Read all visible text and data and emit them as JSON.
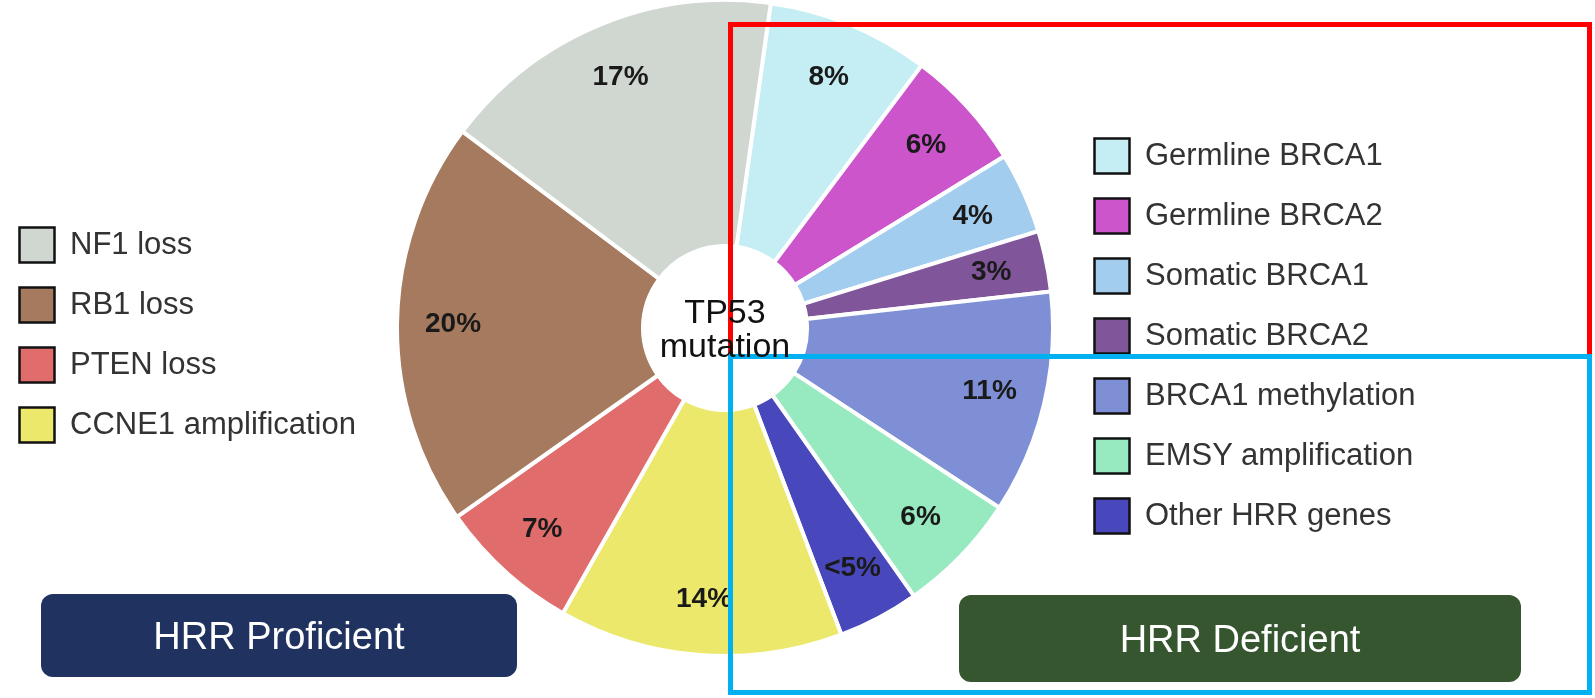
{
  "chart_data": {
    "type": "donut",
    "categories": [
      "Germline BRCA1",
      "Germline BRCA2",
      "Somatic BRCA1",
      "Somatic BRCA2",
      "BRCA1 methylation",
      "EMSY amplification",
      "Other HRR genes",
      "CCNE1 amplification",
      "PTEN loss",
      "RB1 loss",
      "NF1 loss"
    ],
    "values": [
      8,
      6,
      4,
      3,
      11,
      6,
      4,
      14,
      7,
      20,
      17
    ],
    "value_labels": [
      "8%",
      "6%",
      "4%",
      "3%",
      "11%",
      "6%",
      "<5%",
      "14%",
      "7%",
      "20%",
      "17%"
    ],
    "colors": [
      "#c4eef4",
      "#cc55cc",
      "#a3cdef",
      "#80559a",
      "#7e8fd6",
      "#97eac0",
      "#4848bc",
      "#ebe86c",
      "#e06c6c",
      "#a57a5e",
      "#d0d6d0"
    ],
    "legend": "right",
    "annotations": [
      "TP53 mutation",
      "HRR Proficient",
      "HRR Deficient"
    ]
  }
}
